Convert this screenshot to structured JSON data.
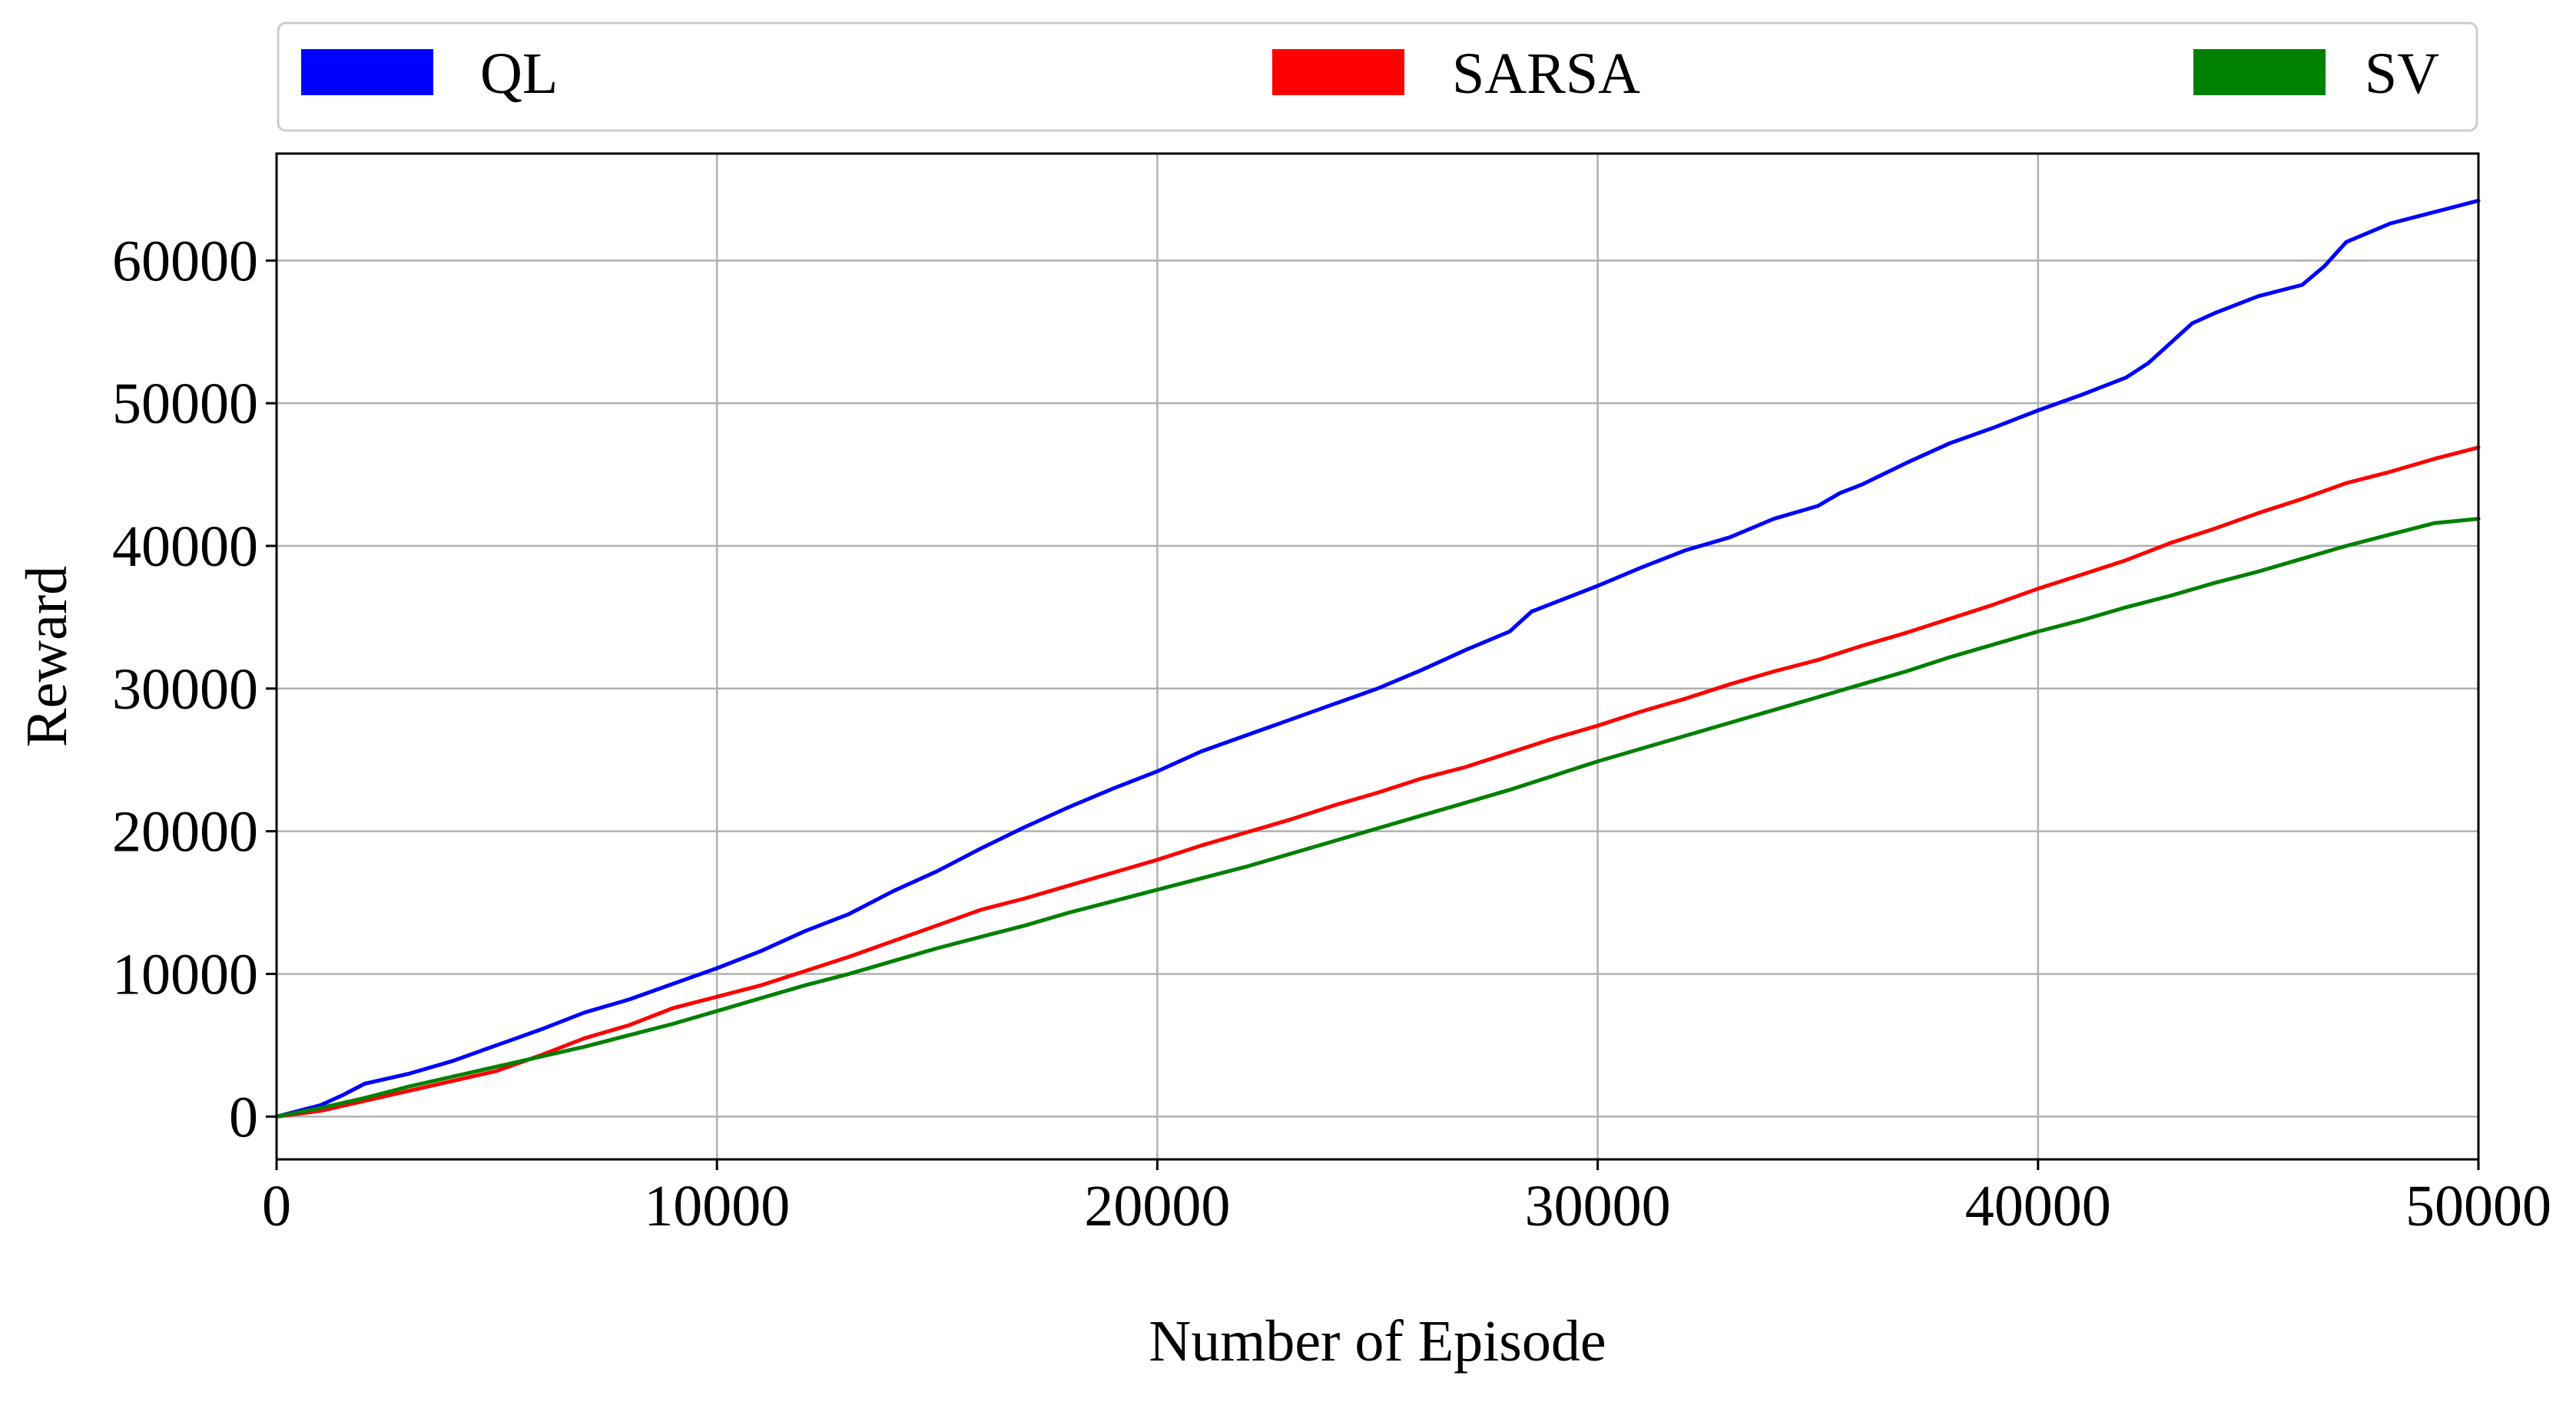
{
  "chart_data": {
    "type": "line",
    "title": "",
    "xlabel": "Number of Episode",
    "ylabel": "Reward",
    "xlim": [
      0,
      50000
    ],
    "ylim": [
      -3000,
      67500
    ],
    "x_ticks": [
      0,
      10000,
      20000,
      30000,
      40000,
      50000
    ],
    "x_tick_labels": [
      "0",
      "10000",
      "20000",
      "30000",
      "40000",
      "50000"
    ],
    "y_ticks": [
      0,
      10000,
      20000,
      30000,
      40000,
      50000,
      60000
    ],
    "y_tick_labels": [
      "0",
      "10000",
      "20000",
      "30000",
      "40000",
      "50000",
      "60000"
    ],
    "grid": true,
    "legend_position": "top, above plot area",
    "series": [
      {
        "name": "QL",
        "color": "#0000ff",
        "x": [
          0,
          1000,
          1500,
          2000,
          3000,
          4000,
          5000,
          6000,
          7000,
          8000,
          9000,
          10000,
          11000,
          12000,
          13000,
          14000,
          15000,
          16000,
          17000,
          18000,
          19000,
          20000,
          21000,
          22000,
          23000,
          24000,
          25000,
          26000,
          27000,
          28000,
          28500,
          29000,
          30000,
          31000,
          32000,
          33000,
          34000,
          35000,
          35500,
          36000,
          37000,
          38000,
          39000,
          40000,
          41000,
          42000,
          42500,
          43000,
          43500,
          44000,
          45000,
          46000,
          46500,
          47000,
          48000,
          49000,
          50000
        ],
        "y": [
          0,
          800,
          1500,
          2300,
          3000,
          3900,
          5000,
          6100,
          7300,
          8200,
          9300,
          10400,
          11600,
          13000,
          14200,
          15800,
          17200,
          18800,
          20300,
          21700,
          23000,
          24200,
          25600,
          26700,
          27800,
          28900,
          30000,
          31300,
          32700,
          34000,
          35400,
          36000,
          37200,
          38500,
          39700,
          40600,
          41900,
          42800,
          43700,
          44300,
          45800,
          47200,
          48300,
          49500,
          50600,
          51800,
          52800,
          54200,
          55600,
          56300,
          57500,
          58300,
          59600,
          61300,
          62600,
          63400,
          64200
        ]
      },
      {
        "name": "SARSA",
        "color": "#ff0000",
        "x": [
          0,
          1000,
          2000,
          3000,
          4000,
          5000,
          6000,
          7000,
          8000,
          9000,
          10000,
          11000,
          12000,
          13000,
          14000,
          15000,
          16000,
          17000,
          18000,
          19000,
          20000,
          21000,
          22000,
          23000,
          24000,
          25000,
          26000,
          27000,
          28000,
          29000,
          30000,
          31000,
          32000,
          33000,
          34000,
          35000,
          36000,
          37000,
          38000,
          39000,
          40000,
          41000,
          42000,
          43000,
          44000,
          45000,
          46000,
          47000,
          48000,
          49000,
          50000
        ],
        "y": [
          0,
          400,
          1100,
          1800,
          2500,
          3200,
          4300,
          5500,
          6400,
          7600,
          8400,
          9200,
          10200,
          11200,
          12300,
          13400,
          14500,
          15300,
          16200,
          17100,
          18000,
          19000,
          19900,
          20800,
          21800,
          22700,
          23700,
          24500,
          25500,
          26500,
          27400,
          28400,
          29300,
          30300,
          31200,
          32000,
          33000,
          33900,
          34900,
          35900,
          37000,
          38000,
          39000,
          40200,
          41200,
          42300,
          43300,
          44400,
          45200,
          46100,
          46900
        ]
      },
      {
        "name": "SV",
        "color": "#008000",
        "x": [
          0,
          1000,
          2000,
          3000,
          4000,
          5000,
          6000,
          7000,
          8000,
          9000,
          10000,
          11000,
          12000,
          13000,
          14000,
          15000,
          16000,
          17000,
          18000,
          19000,
          20000,
          21000,
          22000,
          23000,
          24000,
          25000,
          26000,
          27000,
          28000,
          29000,
          30000,
          31000,
          32000,
          33000,
          34000,
          35000,
          36000,
          37000,
          38000,
          39000,
          40000,
          41000,
          42000,
          43000,
          44000,
          45000,
          46000,
          47000,
          48000,
          49000,
          50000
        ],
        "y": [
          0,
          600,
          1300,
          2100,
          2800,
          3500,
          4200,
          4900,
          5700,
          6500,
          7400,
          8300,
          9200,
          10000,
          10900,
          11800,
          12600,
          13400,
          14300,
          15100,
          15900,
          16700,
          17500,
          18400,
          19300,
          20200,
          21100,
          22000,
          22900,
          23900,
          24900,
          25800,
          26700,
          27600,
          28500,
          29400,
          30300,
          31200,
          32200,
          33100,
          34000,
          34800,
          35700,
          36500,
          37400,
          38200,
          39100,
          40000,
          40800,
          41600,
          41900
        ]
      }
    ]
  }
}
